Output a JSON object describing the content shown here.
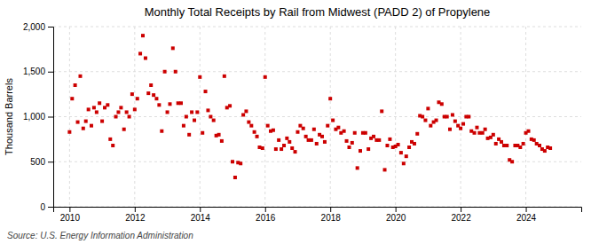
{
  "chart_data": {
    "type": "scatter",
    "title": "Monthly Total Receipts by Rail from Midwest (PADD 2) of Propylene",
    "ylabel": "Thousand Barrels",
    "source": "Source: U.S. Energy Information Administration",
    "color": "#cc0000",
    "marker": "square",
    "grid": true,
    "xlim": [
      2009.5,
      2025.7
    ],
    "xticks": [
      2010,
      2012,
      2014,
      2016,
      2018,
      2020,
      2022,
      2024
    ],
    "ylim": [
      0,
      2000
    ],
    "yticks": [
      0,
      500,
      {
        "value": 1000,
        "label": "1,000"
      },
      {
        "value": 1500,
        "label": "1,500"
      },
      {
        "value": 2000,
        "label": "2,000"
      }
    ],
    "x": [
      2010.0,
      2010.08,
      2010.17,
      2010.25,
      2010.33,
      2010.42,
      2010.5,
      2010.58,
      2010.67,
      2010.75,
      2010.83,
      2010.92,
      2011.0,
      2011.08,
      2011.17,
      2011.25,
      2011.33,
      2011.42,
      2011.5,
      2011.58,
      2011.67,
      2011.75,
      2011.83,
      2011.92,
      2012.0,
      2012.08,
      2012.17,
      2012.25,
      2012.33,
      2012.42,
      2012.5,
      2012.58,
      2012.67,
      2012.75,
      2012.83,
      2012.92,
      2013.0,
      2013.08,
      2013.17,
      2013.25,
      2013.33,
      2013.42,
      2013.5,
      2013.58,
      2013.67,
      2013.75,
      2013.83,
      2013.92,
      2014.0,
      2014.08,
      2014.17,
      2014.25,
      2014.33,
      2014.42,
      2014.5,
      2014.58,
      2014.67,
      2014.75,
      2014.83,
      2014.92,
      2015.0,
      2015.08,
      2015.17,
      2015.25,
      2015.33,
      2015.42,
      2015.5,
      2015.58,
      2015.67,
      2015.75,
      2015.83,
      2015.92,
      2016.0,
      2016.08,
      2016.17,
      2016.25,
      2016.33,
      2016.42,
      2016.5,
      2016.58,
      2016.67,
      2016.75,
      2016.83,
      2016.92,
      2017.0,
      2017.08,
      2017.17,
      2017.25,
      2017.33,
      2017.42,
      2017.5,
      2017.58,
      2017.67,
      2017.75,
      2017.83,
      2017.92,
      2018.0,
      2018.08,
      2018.17,
      2018.25,
      2018.33,
      2018.42,
      2018.5,
      2018.58,
      2018.67,
      2018.75,
      2018.83,
      2018.92,
      2019.0,
      2019.08,
      2019.17,
      2019.25,
      2019.33,
      2019.42,
      2019.5,
      2019.58,
      2019.67,
      2019.75,
      2019.83,
      2019.92,
      2020.0,
      2020.08,
      2020.17,
      2020.25,
      2020.33,
      2020.42,
      2020.5,
      2020.58,
      2020.67,
      2020.75,
      2020.83,
      2020.92,
      2021.0,
      2021.08,
      2021.17,
      2021.25,
      2021.33,
      2021.42,
      2021.5,
      2021.58,
      2021.67,
      2021.75,
      2021.83,
      2021.92,
      2022.0,
      2022.08,
      2022.17,
      2022.25,
      2022.33,
      2022.42,
      2022.5,
      2022.58,
      2022.67,
      2022.75,
      2022.83,
      2022.92,
      2023.0,
      2023.08,
      2023.17,
      2023.25,
      2023.33,
      2023.42,
      2023.5,
      2023.58,
      2023.67,
      2023.75,
      2023.83,
      2023.92,
      2024.0,
      2024.08,
      2024.17,
      2024.25,
      2024.33,
      2024.42,
      2024.5,
      2024.58,
      2024.67,
      2024.75
    ],
    "values": [
      830,
      1200,
      1350,
      940,
      1450,
      870,
      950,
      1080,
      900,
      1100,
      1050,
      1150,
      950,
      1100,
      1130,
      750,
      680,
      1000,
      1050,
      1100,
      860,
      1050,
      1000,
      1250,
      1080,
      1200,
      1700,
      1900,
      1650,
      1260,
      1350,
      1240,
      1200,
      1130,
      840,
      1500,
      1050,
      1140,
      1760,
      1500,
      1150,
      1150,
      900,
      1000,
      800,
      1050,
      960,
      1050,
      1440,
      820,
      1280,
      1070,
      1000,
      960,
      790,
      800,
      730,
      1450,
      1100,
      1120,
      500,
      325,
      490,
      480,
      1020,
      1060,
      940,
      900,
      830,
      780,
      660,
      650,
      1440,
      900,
      840,
      850,
      640,
      740,
      640,
      680,
      760,
      720,
      650,
      610,
      830,
      900,
      870,
      780,
      740,
      740,
      860,
      700,
      800,
      780,
      720,
      900,
      1200,
      960,
      860,
      880,
      820,
      840,
      730,
      660,
      710,
      820,
      430,
      620,
      820,
      820,
      640,
      760,
      780,
      740,
      740,
      1060,
      410,
      680,
      750,
      660,
      670,
      690,
      600,
      480,
      560,
      660,
      720,
      700,
      810,
      1010,
      1000,
      960,
      1090,
      900,
      940,
      960,
      1160,
      1140,
      1000,
      1000,
      860,
      1020,
      950,
      900,
      870,
      920,
      1000,
      1000,
      840,
      820,
      880,
      820,
      820,
      860,
      760,
      770,
      800,
      700,
      750,
      720,
      680,
      680,
      520,
      500,
      680,
      680,
      660,
      700,
      820,
      840,
      750,
      740,
      700,
      680,
      640,
      620,
      660,
      650
    ]
  }
}
